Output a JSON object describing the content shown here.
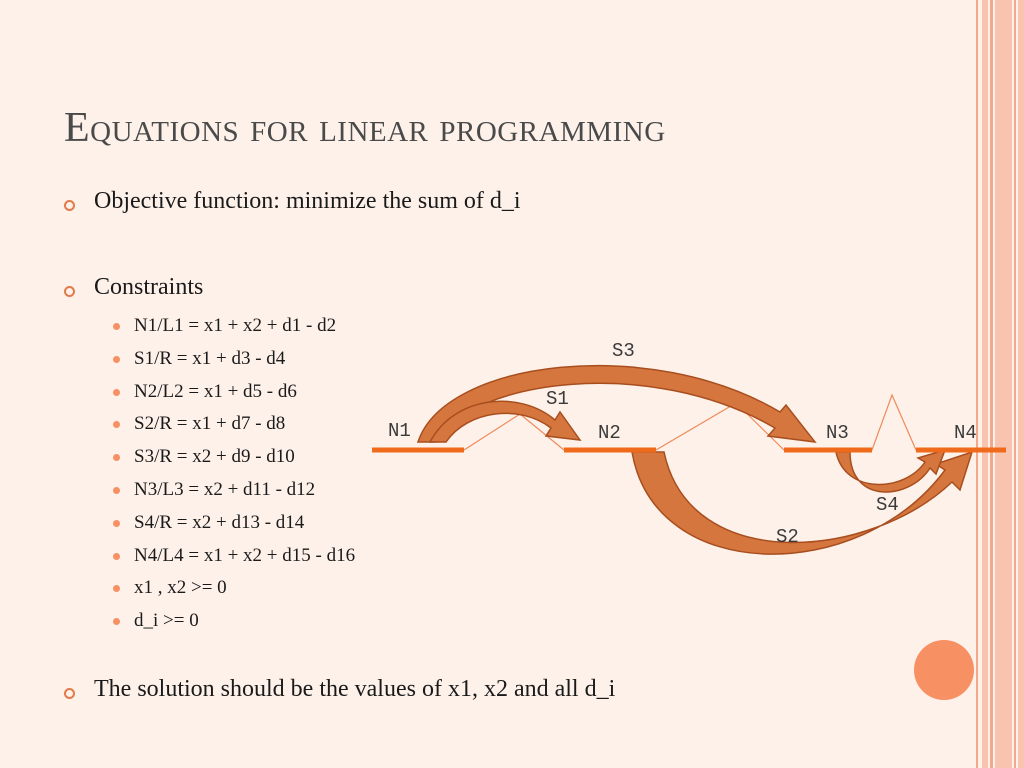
{
  "slide": {
    "title": "Equations for linear programming",
    "bullets": [
      "Objective function: minimize the sum of d_i",
      "Constraints",
      "The solution should be the values of x1, x2 and all d_i"
    ],
    "constraints": [
      "N1/L1 = x1 + x2 + d1 - d2",
      "S1/R = x1 + d3 - d4",
      "N2/L2 = x1 + d5 - d6",
      "S2/R = x1 + d7 - d8",
      "S3/R = x2 + d9 - d10",
      "N3/L3 = x2 + d11 - d12",
      "S4/R = x2 + d13 - d14",
      "N4/L4 = x1 + x2 + d15 - d16",
      "x1 , x2 >= 0",
      "d_i >= 0"
    ]
  },
  "diagram": {
    "nodes": [
      "N1",
      "N2",
      "N3",
      "N4"
    ],
    "arcs": [
      "S1",
      "S2",
      "S3",
      "S4"
    ]
  },
  "colors": {
    "accent": "#f79063",
    "bullet_ring": "#e27a4a",
    "arrow_fill": "#d6763f",
    "arrow_edge": "#a84e1e",
    "node_line": "#f06a1c"
  }
}
